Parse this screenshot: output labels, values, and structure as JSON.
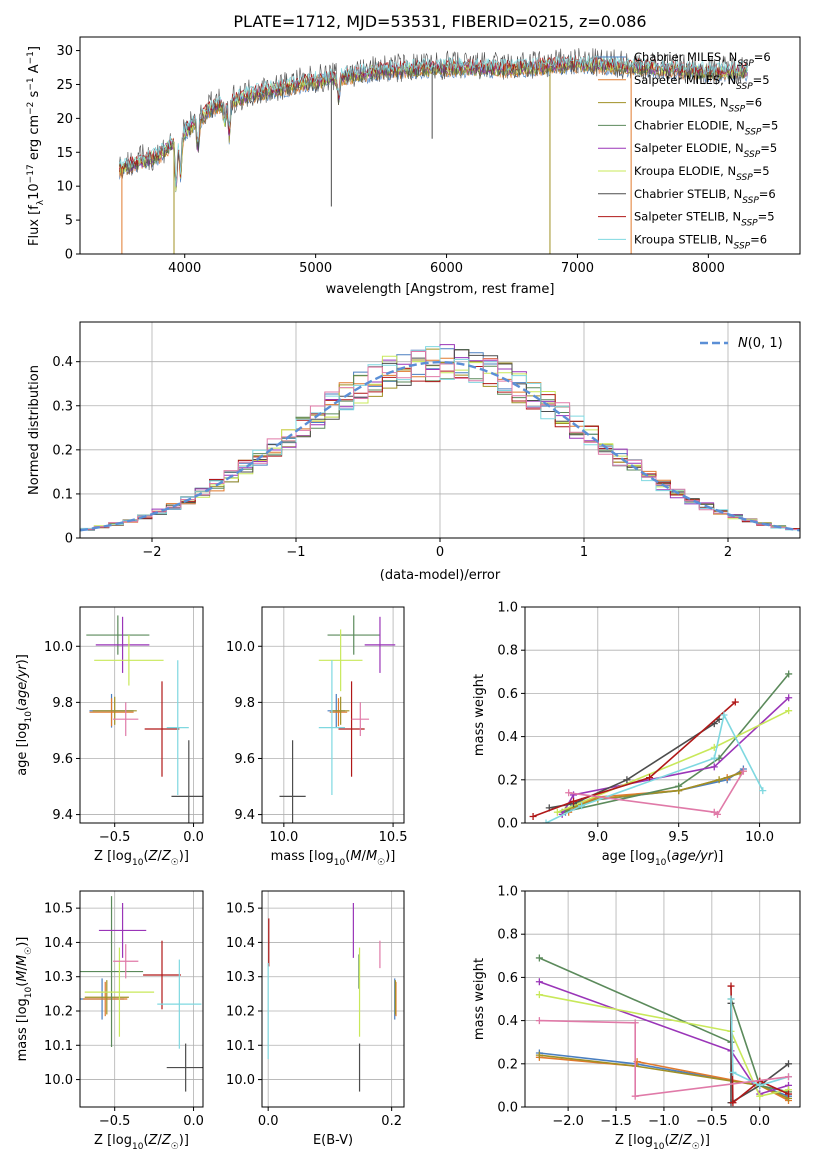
{
  "figure_title": "PLATE=1712, MJD=53531, FIBERID=0215, z=0.086",
  "colors": {
    "Chabrier MILES": "#4a7fc0",
    "Salpeter MILES": "#e07a2e",
    "Kroupa MILES": "#a09025",
    "Chabrier ELODIE": "#5b8a5b",
    "Salpeter ELODIE": "#9a35b8",
    "Kroupa ELODIE": "#c8e85a",
    "Chabrier STELIB": "#4d4d4d",
    "Salpeter STELIB": "#b01818",
    "Kroupa STELIB": "#7fd8e0",
    "N01": "#5b8fd6",
    "pinkLine": "#e07aa8"
  },
  "chart_data": [
    {
      "id": "spectrum",
      "type": "line",
      "xlabel": "wavelength [Angstrom, rest frame]",
      "ylabel": "Flux [f_λ10^-17 erg cm^-2 s^-1 A^-1]",
      "xlim": [
        3200,
        8700
      ],
      "ylim": [
        0,
        32
      ],
      "xticks": [
        4000,
        5000,
        6000,
        7000,
        8000
      ],
      "yticks": [
        0,
        5,
        10,
        15,
        20,
        25,
        30
      ],
      "grid": false,
      "legend_position": "right",
      "legend": [
        {
          "model": "Chabrier MILES",
          "nssp": "6"
        },
        {
          "model": "Salpeter MILES",
          "nssp": "5"
        },
        {
          "model": "Kroupa MILES",
          "nssp": "6"
        },
        {
          "model": "Chabrier ELODIE",
          "nssp": "5"
        },
        {
          "model": "Salpeter ELODIE",
          "nssp": "5"
        },
        {
          "model": "Kroupa ELODIE",
          "nssp": "5"
        },
        {
          "model": "Chabrier STELIB",
          "nssp": "6"
        },
        {
          "model": "Salpeter STELIB",
          "nssp": "5"
        },
        {
          "model": "Kroupa STELIB",
          "nssp": "6"
        }
      ],
      "continuum": {
        "x": [
          3500,
          3800,
          4000,
          4200,
          4500,
          5000,
          5500,
          6000,
          6500,
          7000,
          7500,
          8000,
          8300
        ],
        "y": [
          12.5,
          14.5,
          18,
          21.5,
          23.5,
          25.5,
          27,
          27.5,
          27.3,
          28,
          27.5,
          26.8,
          27
        ]
      },
      "absorption_lines": [
        {
          "x": 3934,
          "depth": 7
        },
        {
          "x": 3969,
          "depth": 6
        },
        {
          "x": 4102,
          "depth": 4
        },
        {
          "x": 4305,
          "depth": 3
        },
        {
          "x": 4340,
          "depth": 5
        },
        {
          "x": 5175,
          "depth": 3
        }
      ],
      "spikes": [
        {
          "x": 3520,
          "bottom": 0,
          "series": "Salpeter MILES"
        },
        {
          "x": 3918,
          "bottom": 0,
          "series": "Kroupa MILES"
        },
        {
          "x": 5120,
          "bottom": 7,
          "series": "Chabrier STELIB"
        },
        {
          "x": 5890,
          "bottom": 17,
          "series": "Chabrier STELIB"
        },
        {
          "x": 6790,
          "bottom": 0,
          "series": "Kroupa MILES"
        },
        {
          "x": 7410,
          "bottom": 0,
          "series": "Salpeter MILES"
        }
      ]
    },
    {
      "id": "residuals",
      "type": "step",
      "xlabel": "(data-model)/error",
      "ylabel": "Normed distribution",
      "xlim": [
        -2.5,
        2.5
      ],
      "ylim": [
        0,
        0.49
      ],
      "xticks": [
        -2,
        -1,
        0,
        1,
        2
      ],
      "xtick_labels": [
        "−2",
        "−1",
        "0",
        "1",
        "2"
      ],
      "yticks": [
        0.0,
        0.1,
        0.2,
        0.3,
        0.4
      ],
      "grid": true,
      "legend_position": "top-right",
      "legend": [
        {
          "label": "N(0,1)",
          "style": "dashed"
        }
      ],
      "bin_width": 0.1
    },
    {
      "id": "z-age",
      "type": "errorbar",
      "xlabel": "Z [log10(Z/Z☉)]",
      "ylabel": "age [log10(age/yr)]",
      "xlim": [
        -0.72,
        0.06
      ],
      "ylim": [
        9.37,
        10.14
      ],
      "xticks": [
        -0.5,
        0
      ],
      "xtick_labels": [
        "−0.5",
        "0.0"
      ],
      "yticks": [
        9.4,
        9.6,
        9.8,
        10.0
      ],
      "yticks_labels": [
        "9.4",
        "9.6",
        "9.8",
        "10.0"
      ],
      "grid": true,
      "points": [
        {
          "series": "Chabrier MILES",
          "x": -0.52,
          "xerr": 0.14,
          "y": 9.77,
          "yerr": 0.06
        },
        {
          "series": "Salpeter MILES",
          "x": -0.52,
          "xerr": 0.14,
          "y": 9.765,
          "yerr": 0.05
        },
        {
          "series": "Kroupa MILES",
          "x": -0.5,
          "xerr": 0.14,
          "y": 9.77,
          "yerr": 0.05
        },
        {
          "series": "Chabrier ELODIE",
          "x": -0.48,
          "xerr": 0.2,
          "y": 10.04,
          "yerr": 0.07
        },
        {
          "series": "Salpeter ELODIE",
          "x": -0.45,
          "xerr": 0.17,
          "y": 10.005,
          "yerr": 0.1
        },
        {
          "series": "Kroupa ELODIE",
          "x": -0.41,
          "xerr": 0.22,
          "y": 9.95,
          "yerr": 0.09
        },
        {
          "series": "Chabrier STELIB",
          "x": -0.03,
          "xerr": 0.11,
          "y": 9.465,
          "yerr": 0.2
        },
        {
          "series": "Salpeter STELIB",
          "x": -0.2,
          "xerr": 0.11,
          "y": 9.705,
          "yerr": 0.17
        },
        {
          "series": "Kroupa STELIB",
          "x": -0.1,
          "xerr": 0.07,
          "y": 9.71,
          "yerr": 0.24
        },
        {
          "series": "pinkLine",
          "x": -0.43,
          "xerr": 0.08,
          "y": 9.74,
          "yerr": 0.06
        }
      ]
    },
    {
      "id": "mass-age",
      "type": "errorbar",
      "xlabel": "mass [log10(M/M☉)]",
      "ylabel": "",
      "xlim": [
        9.9,
        10.55
      ],
      "ylim": [
        9.37,
        10.14
      ],
      "xticks": [
        10.0,
        10.5
      ],
      "xtick_labels": [
        "10.0",
        "10.5"
      ],
      "yticks": [
        9.4,
        9.6,
        9.8,
        10.0
      ],
      "yticks_labels": [
        "9.4",
        "9.6",
        "9.8",
        "10.0"
      ],
      "grid": true,
      "points": [
        {
          "series": "Chabrier MILES",
          "x": 10.24,
          "xerr": 0.04,
          "y": 9.77,
          "yerr": 0.06
        },
        {
          "series": "Salpeter MILES",
          "x": 10.25,
          "xerr": 0.04,
          "y": 9.765,
          "yerr": 0.05
        },
        {
          "series": "Kroupa MILES",
          "x": 10.26,
          "xerr": 0.04,
          "y": 9.77,
          "yerr": 0.05
        },
        {
          "series": "Chabrier ELODIE",
          "x": 10.32,
          "xerr": 0.12,
          "y": 10.04,
          "yerr": 0.07
        },
        {
          "series": "Salpeter ELODIE",
          "x": 10.44,
          "xerr": 0.07,
          "y": 10.005,
          "yerr": 0.1
        },
        {
          "series": "Kroupa ELODIE",
          "x": 10.26,
          "xerr": 0.1,
          "y": 9.95,
          "yerr": 0.11
        },
        {
          "series": "Chabrier STELIB",
          "x": 10.04,
          "xerr": 0.06,
          "y": 9.465,
          "yerr": 0.2
        },
        {
          "series": "Salpeter STELIB",
          "x": 10.31,
          "xerr": 0.06,
          "y": 9.705,
          "yerr": 0.17
        },
        {
          "series": "Kroupa STELIB",
          "x": 10.22,
          "xerr": 0.06,
          "y": 9.71,
          "yerr": 0.24
        },
        {
          "series": "pinkLine",
          "x": 10.35,
          "xerr": 0.04,
          "y": 9.74,
          "yerr": 0.06
        }
      ]
    },
    {
      "id": "age-massweight",
      "type": "line",
      "xlabel": "age [log10(age/yr)]",
      "ylabel": "mass weight",
      "xlim": [
        8.55,
        10.25
      ],
      "ylim": [
        0,
        1.0
      ],
      "xticks": [
        9.0,
        9.5,
        10.0
      ],
      "xtick_labels": [
        "9.0",
        "9.5",
        "10.0"
      ],
      "yticks": [
        0.0,
        0.2,
        0.4,
        0.6,
        0.8,
        1.0
      ],
      "yticks_labels": [
        "0.0",
        "0.2",
        "0.4",
        "0.6",
        "0.8",
        "1.0"
      ],
      "grid": true,
      "series": [
        {
          "name": "Chabrier MILES",
          "x": [
            8.8,
            8.85,
            8.9,
            9.5,
            9.8,
            9.9
          ],
          "y": [
            0.05,
            0.08,
            0.1,
            0.15,
            0.2,
            0.25
          ]
        },
        {
          "name": "Salpeter MILES",
          "x": [
            8.82,
            8.9,
            9.0,
            9.5,
            9.8,
            9.9
          ],
          "y": [
            0.05,
            0.09,
            0.12,
            0.15,
            0.21,
            0.24
          ]
        },
        {
          "name": "Kroupa MILES",
          "x": [
            8.8,
            8.88,
            9.0,
            9.5,
            9.75,
            9.88
          ],
          "y": [
            0.06,
            0.08,
            0.11,
            0.15,
            0.2,
            0.23
          ]
        },
        {
          "name": "Chabrier ELODIE",
          "x": [
            8.78,
            9.5,
            9.75,
            10.18
          ],
          "y": [
            0.05,
            0.17,
            0.3,
            0.69
          ]
        },
        {
          "name": "Salpeter ELODIE",
          "x": [
            8.78,
            8.85,
            9.72,
            10.18
          ],
          "y": [
            0.04,
            0.13,
            0.26,
            0.58
          ]
        },
        {
          "name": "Kroupa ELODIE",
          "x": [
            8.75,
            9.72,
            10.18
          ],
          "y": [
            0.05,
            0.35,
            0.52
          ]
        },
        {
          "name": "Chabrier STELIB",
          "x": [
            8.7,
            8.85,
            9.18,
            9.72,
            9.75
          ],
          "y": [
            0.07,
            0.09,
            0.2,
            0.46,
            0.48
          ]
        },
        {
          "name": "Salpeter STELIB",
          "x": [
            8.6,
            8.85,
            9.32,
            9.85
          ],
          "y": [
            0.03,
            0.1,
            0.21,
            0.56
          ]
        },
        {
          "name": "Kroupa STELIB",
          "x": [
            8.68,
            8.9,
            9.72,
            9.78,
            10.02
          ],
          "y": [
            0.0,
            0.08,
            0.3,
            0.5,
            0.15
          ]
        },
        {
          "name": "pinkLine",
          "x": [
            8.82,
            9.72,
            9.74,
            9.9
          ],
          "y": [
            0.14,
            0.05,
            0.04,
            0.24
          ]
        }
      ]
    },
    {
      "id": "z-mass",
      "type": "errorbar",
      "xlabel": "Z [log10(Z/Z☉)]",
      "ylabel": "mass [log10(M/M☉)]",
      "xlim": [
        -0.72,
        0.06
      ],
      "ylim": [
        9.92,
        10.55
      ],
      "xticks": [
        -0.5,
        0
      ],
      "xtick_labels": [
        "−0.5",
        "0.0"
      ],
      "yticks": [
        10.0,
        10.1,
        10.2,
        10.3,
        10.4,
        10.5
      ],
      "yticks_labels": [
        "10.0",
        "10.1",
        "10.2",
        "10.3",
        "10.4",
        "10.5"
      ],
      "grid": true,
      "points": [
        {
          "series": "Chabrier MILES",
          "x": -0.58,
          "xerr": 0.14,
          "y": 10.235,
          "yerr": 0.06
        },
        {
          "series": "Salpeter MILES",
          "x": -0.56,
          "xerr": 0.14,
          "y": 10.235,
          "yerr": 0.05
        },
        {
          "series": "Kroupa MILES",
          "x": -0.55,
          "xerr": 0.14,
          "y": 10.24,
          "yerr": 0.05
        },
        {
          "series": "Chabrier ELODIE",
          "x": -0.52,
          "xerr": 0.2,
          "y": 10.315,
          "yerr": 0.22
        },
        {
          "series": "Salpeter ELODIE",
          "x": -0.45,
          "xerr": 0.15,
          "y": 10.435,
          "yerr": 0.08
        },
        {
          "series": "Kroupa ELODIE",
          "x": -0.47,
          "xerr": 0.22,
          "y": 10.255,
          "yerr": 0.13
        },
        {
          "series": "Chabrier STELIB",
          "x": -0.05,
          "xerr": 0.12,
          "y": 10.035,
          "yerr": 0.07
        },
        {
          "series": "Salpeter STELIB",
          "x": -0.2,
          "xerr": 0.12,
          "y": 10.305,
          "yerr": 0.1
        },
        {
          "series": "Kroupa STELIB",
          "x": -0.09,
          "xerr": 0.14,
          "y": 10.22,
          "yerr": 0.13
        },
        {
          "series": "pinkLine",
          "x": -0.43,
          "xerr": 0.08,
          "y": 10.345,
          "yerr": 0.05
        }
      ]
    },
    {
      "id": "ebv-mass",
      "type": "errorbar",
      "xlabel": "E(B-V)",
      "ylabel": "",
      "xlim": [
        -0.01,
        0.22
      ],
      "ylim": [
        9.92,
        10.55
      ],
      "xticks": [
        0.0,
        0.2
      ],
      "xtick_labels": [
        "0.0",
        "0.2"
      ],
      "yticks": [
        10.0,
        10.1,
        10.2,
        10.3,
        10.4,
        10.5
      ],
      "yticks_labels": [
        "10.0",
        "10.1",
        "10.2",
        "10.3",
        "10.4",
        "10.5"
      ],
      "grid": true,
      "points": [
        {
          "series": "Chabrier MILES",
          "x": 0.205,
          "xerr": 0.0,
          "y": 10.235,
          "yerr": 0.06
        },
        {
          "series": "Salpeter MILES",
          "x": 0.207,
          "xerr": 0.0,
          "y": 10.235,
          "yerr": 0.05
        },
        {
          "series": "Kroupa MILES",
          "x": 0.206,
          "xerr": 0.0,
          "y": 10.24,
          "yerr": 0.05
        },
        {
          "series": "Chabrier ELODIE",
          "x": 0.147,
          "xerr": 0.0,
          "y": 10.315,
          "yerr": 0.05
        },
        {
          "series": "Salpeter ELODIE",
          "x": 0.138,
          "xerr": 0.0,
          "y": 10.435,
          "yerr": 0.08
        },
        {
          "series": "Kroupa ELODIE",
          "x": 0.148,
          "xerr": 0.0,
          "y": 10.255,
          "yerr": 0.13
        },
        {
          "series": "Chabrier STELIB",
          "x": 0.148,
          "xerr": 0.0,
          "y": 10.035,
          "yerr": 0.07
        },
        {
          "series": "Salpeter STELIB",
          "x": 0.001,
          "xerr": 0.0,
          "y": 10.4,
          "yerr": 0.07
        },
        {
          "series": "Kroupa STELIB",
          "x": 0.0,
          "xerr": 0.0,
          "y": 10.2,
          "yerr": 0.14
        },
        {
          "series": "pinkLine",
          "x": 0.181,
          "xerr": 0.0,
          "y": 10.365,
          "yerr": 0.04
        }
      ]
    },
    {
      "id": "z-massweight",
      "type": "line",
      "xlabel": "Z [log10(Z/Z☉)]",
      "ylabel": "mass weight",
      "xlim": [
        -2.45,
        0.42
      ],
      "ylim": [
        0,
        1.0
      ],
      "xticks": [
        -2.0,
        -1.5,
        -1.0,
        -0.5,
        0.0
      ],
      "xtick_labels": [
        "−2.0",
        "−1.5",
        "−1.0",
        "−0.5",
        "0.0"
      ],
      "yticks": [
        0.0,
        0.2,
        0.4,
        0.6,
        0.8,
        1.0
      ],
      "yticks_labels": [
        "0.0",
        "0.2",
        "0.4",
        "0.6",
        "0.8",
        "1.0"
      ],
      "grid": true,
      "series": [
        {
          "name": "Chabrier MILES",
          "x": [
            -2.3,
            -1.3,
            0.0,
            0.3
          ],
          "y": [
            0.25,
            0.2,
            0.1,
            0.05
          ]
        },
        {
          "name": "Salpeter MILES",
          "x": [
            -2.3,
            -1.3,
            -1.28,
            0.0,
            0.3
          ],
          "y": [
            0.23,
            0.19,
            0.21,
            0.1,
            0.03
          ]
        },
        {
          "name": "Kroupa MILES",
          "x": [
            -2.3,
            -1.3,
            0.0,
            0.3
          ],
          "y": [
            0.24,
            0.19,
            0.1,
            0.04
          ]
        },
        {
          "name": "Chabrier ELODIE",
          "x": [
            -2.3,
            -0.3,
            -0.3,
            0.0,
            0.3
          ],
          "y": [
            0.69,
            0.3,
            0.5,
            0.1,
            0.07
          ]
        },
        {
          "name": "Salpeter ELODIE",
          "x": [
            -2.3,
            -0.3,
            0.0,
            0.3
          ],
          "y": [
            0.58,
            0.26,
            0.06,
            0.1
          ]
        },
        {
          "name": "Kroupa ELODIE",
          "x": [
            -2.3,
            -0.3,
            0.0,
            0.3
          ],
          "y": [
            0.52,
            0.35,
            0.05,
            0.08
          ]
        },
        {
          "name": "Chabrier STELIB",
          "x": [
            -0.3,
            -0.3,
            0.0,
            0.3
          ],
          "y": [
            0.48,
            0.02,
            0.1,
            0.2
          ]
        },
        {
          "name": "Salpeter STELIB",
          "x": [
            -0.3,
            -0.28,
            0.0,
            0.3
          ],
          "y": [
            0.56,
            0.02,
            0.12,
            0.06
          ]
        },
        {
          "name": "Kroupa STELIB",
          "x": [
            -0.3,
            -0.28,
            0.0,
            0.3
          ],
          "y": [
            0.5,
            0.16,
            0.1,
            0.14
          ]
        },
        {
          "name": "pinkLine",
          "x": [
            -2.3,
            -1.3,
            -1.3,
            0.3
          ],
          "y": [
            0.4,
            0.39,
            0.05,
            0.14
          ]
        }
      ]
    }
  ]
}
